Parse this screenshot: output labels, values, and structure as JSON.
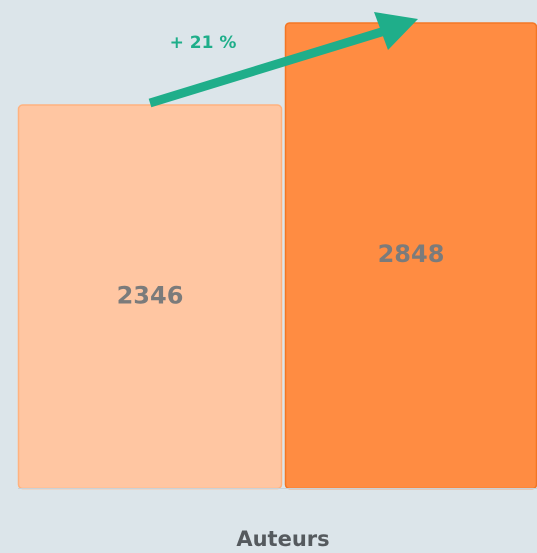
{
  "chart_data": {
    "type": "bar",
    "categories": [
      "Auteurs"
    ],
    "series": [
      {
        "color": "#ffc6a2",
        "values": [
          2346
        ]
      },
      {
        "color": "#ff8c42",
        "values": [
          2848
        ]
      }
    ],
    "annotation": "+ 21 %",
    "ylim": [
      0,
      2900
    ]
  }
}
